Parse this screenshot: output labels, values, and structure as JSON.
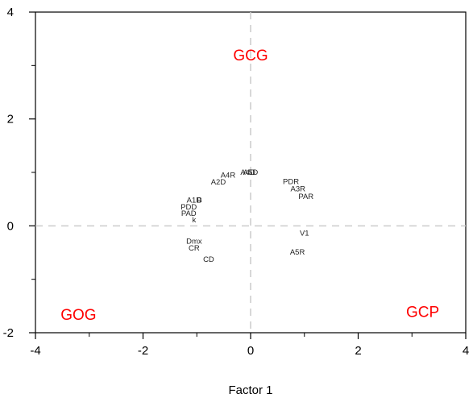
{
  "chart_data": {
    "type": "scatter",
    "xlabel": "Factor 1",
    "ylabel": "",
    "xlim": [
      -4,
      4
    ],
    "ylim": [
      -2,
      4
    ],
    "x_ticks": [
      -4,
      -2,
      0,
      2,
      4
    ],
    "y_ticks": [
      -2,
      0,
      2,
      4
    ],
    "grid": false,
    "reference_lines": {
      "x": 0,
      "y": 0,
      "style": "dashed",
      "color": "#cccccc"
    },
    "points": [
      {
        "label": "A4D",
        "x": -0.05,
        "y": 1.0
      },
      {
        "label": "A5D",
        "x": 0.0,
        "y": 1.0
      },
      {
        "label": "A4R",
        "x": -0.42,
        "y": 0.95
      },
      {
        "label": "A2D",
        "x": -0.6,
        "y": 0.82
      },
      {
        "label": "PDR",
        "x": 0.75,
        "y": 0.83
      },
      {
        "label": "A3R",
        "x": 0.88,
        "y": 0.69
      },
      {
        "label": "PAR",
        "x": 1.03,
        "y": 0.55
      },
      {
        "label": "A1D",
        "x": -1.05,
        "y": 0.48
      },
      {
        "label": "B",
        "x": -0.95,
        "y": 0.48
      },
      {
        "label": "PDD",
        "x": -1.15,
        "y": 0.35
      },
      {
        "label": "PAD",
        "x": -1.15,
        "y": 0.23
      },
      {
        "label": "k",
        "x": -1.05,
        "y": 0.11
      },
      {
        "label": "V1",
        "x": 1.0,
        "y": -0.14
      },
      {
        "label": "Dmx",
        "x": -1.05,
        "y": -0.29
      },
      {
        "label": "CR",
        "x": -1.05,
        "y": -0.42
      },
      {
        "label": "A5R",
        "x": 0.87,
        "y": -0.49
      },
      {
        "label": "CD",
        "x": -0.78,
        "y": -0.63
      }
    ],
    "annotations": [
      {
        "text": "GCG",
        "x": 0.0,
        "y": 3.2,
        "color": "#ff0000"
      },
      {
        "text": "GOG",
        "x": -3.2,
        "y": -1.65,
        "color": "#ff0000"
      },
      {
        "text": "GCP",
        "x": 3.2,
        "y": -1.6,
        "color": "#ff0000"
      }
    ],
    "axis_color": "#000000",
    "label_color": "#222222"
  }
}
